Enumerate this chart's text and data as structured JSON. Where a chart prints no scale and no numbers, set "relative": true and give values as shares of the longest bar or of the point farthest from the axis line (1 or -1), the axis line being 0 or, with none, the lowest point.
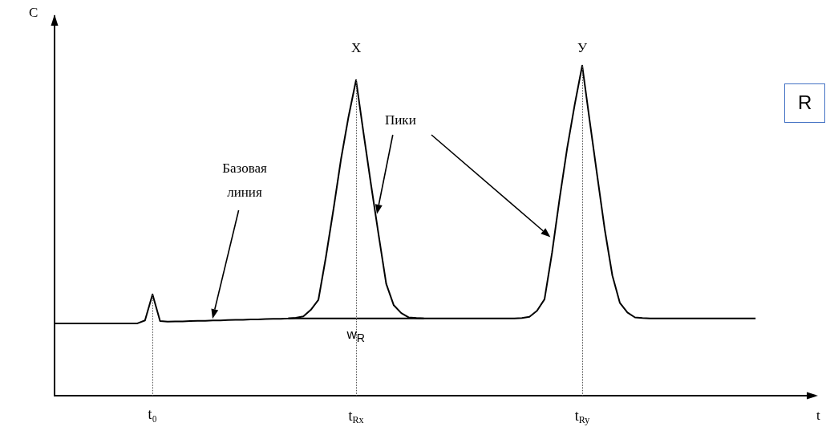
{
  "chart_data": {
    "type": "line",
    "relative": true,
    "xlabel": "t",
    "ylabel": "C",
    "categories": [
      null,
      null,
      null,
      null,
      null,
      null,
      null,
      null,
      null,
      null,
      null,
      null,
      null,
      "t₀",
      null,
      null,
      null,
      null,
      null,
      null,
      null,
      null,
      null,
      null,
      null,
      null,
      null,
      null,
      null,
      null,
      null,
      null,
      null,
      null,
      null,
      null,
      null,
      null,
      null,
      null,
      "t$_{Rx}$",
      null,
      null,
      null,
      null,
      null,
      null,
      null,
      null,
      null,
      null,
      null,
      null,
      null,
      null,
      null,
      null,
      null,
      null,
      null,
      null,
      null,
      null,
      null,
      null,
      null,
      null,
      null,
      null,
      null,
      "t$_{Ry}$",
      null,
      null,
      null,
      null,
      null,
      null,
      null,
      null,
      null,
      null,
      null,
      null,
      null,
      null,
      null,
      null,
      null,
      null,
      null,
      null,
      null,
      null,
      null,
      null,
      null,
      null,
      null,
      null,
      null,
      null
    ],
    "series": [
      {
        "color": "#000000",
        "values": [
          0.219,
          0.219,
          0.219,
          0.219,
          0.219,
          0.219,
          0.219,
          0.219,
          0.219,
          0.219,
          0.219,
          0.219,
          0.228,
          0.307,
          0.226,
          0.224,
          0.225,
          0.225,
          0.226,
          0.227,
          0.227,
          0.228,
          0.228,
          0.229,
          0.23,
          0.23,
          0.231,
          0.231,
          0.232,
          0.233,
          0.233,
          0.234,
          0.236,
          0.24,
          0.26,
          0.29,
          0.42,
          0.564,
          0.716,
          0.845,
          0.956,
          0.794,
          0.637,
          0.486,
          0.339,
          0.274,
          0.25,
          0.237,
          0.235,
          0.234,
          0.234,
          0.234,
          0.234,
          0.234,
          0.234,
          0.234,
          0.234,
          0.234,
          0.234,
          0.234,
          0.234,
          0.234,
          0.235,
          0.239,
          0.257,
          0.292,
          0.433,
          0.597,
          0.749,
          0.881,
          1,
          0.831,
          0.665,
          0.502,
          0.364,
          0.281,
          0.252,
          0.237,
          0.235,
          0.234,
          0.234,
          0.234,
          0.234,
          0.234,
          0.234,
          0.234,
          0.234,
          0.234,
          0.234,
          0.234,
          0.234,
          0.234,
          0.234,
          0.234,
          null,
          null,
          null,
          null,
          null,
          null,
          null
        ]
      },
      {
        "color": "#000000",
        "values": [
          null,
          null,
          null,
          null,
          null,
          null,
          null,
          null,
          null,
          null,
          null,
          null,
          null,
          null,
          null,
          null,
          null,
          null,
          null,
          null,
          null,
          null,
          null,
          null,
          null,
          null,
          null,
          null,
          null,
          null,
          null,
          0.234,
          0.234,
          0.234,
          0.234,
          0.234,
          0.234,
          0.234,
          0.234,
          0.234,
          0.234,
          0.234,
          0.234,
          0.234,
          0.234,
          0.234,
          0.234,
          0.234,
          0.234,
          0.234,
          null,
          null,
          null,
          null,
          null,
          null,
          null,
          null,
          null,
          null,
          null,
          null,
          null,
          null,
          null,
          null,
          null,
          null,
          null,
          null,
          null,
          null,
          null,
          null,
          null,
          null,
          null,
          null,
          null,
          null,
          null,
          null,
          null,
          null,
          null,
          null,
          null,
          null,
          null,
          null,
          null,
          null,
          null,
          null,
          null,
          null,
          null,
          null,
          null,
          null,
          null
        ]
      }
    ],
    "ref_lines": [
      {
        "axis": "x",
        "value": "t₀",
        "line_style": "dotted"
      },
      {
        "axis": "x",
        "value": "t$_{Rx}$",
        "line_style": "dotted"
      },
      {
        "axis": "x",
        "value": "t$_{Ry}$",
        "line_style": "dotted"
      }
    ],
    "annotations": [
      {
        "text": "X",
        "x": "t$_{Rx}$",
        "y": 0.956
      },
      {
        "text": "У",
        "x": "t$_{Ry}$",
        "y": 1
      },
      "Базовая линия",
      "Пики",
      {
        "text": "w$_{R}$",
        "x": "t$_{Rx}$",
        "y": 0.234
      },
      "R"
    ],
    "grid": false,
    "marker": "none",
    "line_style": "solid"
  }
}
